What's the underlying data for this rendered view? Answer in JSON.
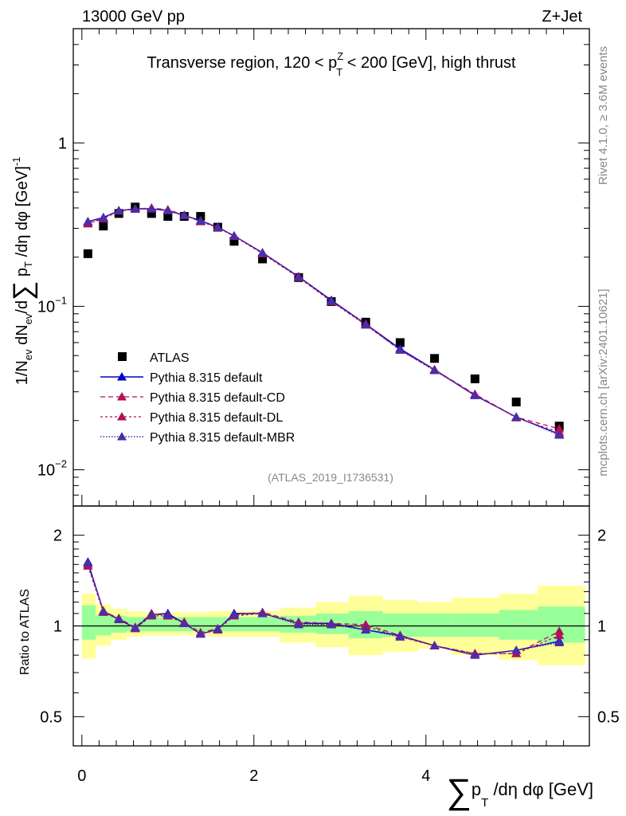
{
  "header": {
    "left": "13000 GeV pp",
    "right": "Z+Jet"
  },
  "side_labels": {
    "rivet": "Rivet 4.1.0, ≥ 3.6M events",
    "mcplots": "mcplots.cern.ch [arXiv:2401.10621]"
  },
  "colors": {
    "atlas": "#000000",
    "default": "#0000cc",
    "cd": "#b0105a",
    "dl": "#b0105a",
    "mbr": "#4b2ea8",
    "band_inner": "#99ff99",
    "band_outer": "#ffff99"
  },
  "chart_data": [
    {
      "type": "scatter",
      "title": "Transverse region, 120 < p_T^Z < 200 [GeV], high thrust",
      "title_parts": {
        "pre": "Transverse region, 120 < p",
        "sup": "Z",
        "sub": "T",
        "post": " < 200 [GeV], high thrust"
      },
      "ylabel": "1/N_ev dN_ev/d∑ p_T /dη dφ [GeV]^-1",
      "yscale": "log",
      "ylim": [
        0.006,
        5.0
      ],
      "xlim": [
        -0.1,
        5.9
      ],
      "y_tick_labels": {
        "1": "1",
        "0.1": "10",
        "0.01": "10"
      },
      "y_tick_exponents": {
        "0.1": "−1",
        "0.01": "−2"
      },
      "watermark": "(ATLAS_2019_I1736531)",
      "legend": [
        "ATLAS",
        "Pythia 8.315 default",
        "Pythia 8.315 default-CD",
        "Pythia 8.315 default-DL",
        "Pythia 8.315 default-MBR"
      ],
      "x": [
        0.07,
        0.25,
        0.43,
        0.62,
        0.81,
        1.0,
        1.19,
        1.38,
        1.58,
        1.77,
        2.1,
        2.52,
        2.9,
        3.3,
        3.7,
        4.1,
        4.57,
        5.05,
        5.55
      ],
      "series": [
        {
          "name": "ATLAS",
          "values": [
            0.21,
            0.31,
            0.37,
            0.405,
            0.37,
            0.355,
            0.355,
            0.355,
            0.305,
            0.25,
            0.195,
            0.15,
            0.107,
            0.08,
            0.06,
            0.048,
            0.036,
            0.026,
            0.0185
          ]
        },
        {
          "name": "Pythia 8.315 default",
          "values": [
            0.33,
            0.35,
            0.385,
            0.395,
            0.395,
            0.385,
            0.36,
            0.335,
            0.305,
            0.27,
            0.213,
            0.152,
            0.109,
            0.078,
            0.055,
            0.041,
            0.0285,
            0.021,
            0.0165
          ]
        },
        {
          "name": "Pythia 8.315 default-CD",
          "values": [
            0.325,
            0.345,
            0.385,
            0.395,
            0.4,
            0.39,
            0.362,
            0.332,
            0.305,
            0.27,
            0.212,
            0.152,
            0.108,
            0.078,
            0.054,
            0.041,
            0.029,
            0.021,
            0.0178
          ]
        },
        {
          "name": "Pythia 8.315 default-DL",
          "values": [
            0.32,
            0.343,
            0.383,
            0.393,
            0.398,
            0.388,
            0.36,
            0.33,
            0.303,
            0.268,
            0.21,
            0.15,
            0.107,
            0.077,
            0.054,
            0.0405,
            0.0288,
            0.0208,
            0.017
          ]
        },
        {
          "name": "Pythia 8.315 default-MBR",
          "values": [
            0.33,
            0.348,
            0.385,
            0.395,
            0.395,
            0.385,
            0.36,
            0.333,
            0.305,
            0.27,
            0.212,
            0.151,
            0.108,
            0.077,
            0.054,
            0.0405,
            0.0285,
            0.021,
            0.0163
          ]
        }
      ]
    },
    {
      "type": "line",
      "ylabel": "Ratio to ATLAS",
      "xlabel": "∑ p_T /dη dφ [GeV]",
      "xlabel_parts": {
        "sum": "∑",
        "p": "p",
        "sub": "T",
        "rest": "/dη dφ [GeV]"
      },
      "xlim": [
        -0.1,
        5.9
      ],
      "ylim": [
        0.4,
        2.5
      ],
      "yscale": "log",
      "x_ticks": [
        0,
        2,
        4
      ],
      "x_tick_labels": [
        "0",
        "2",
        "4"
      ],
      "y_ticks": [
        0.5,
        1,
        2
      ],
      "y_tick_labels": [
        "0.5",
        "1",
        "2"
      ],
      "bins": [
        0.0,
        0.16,
        0.34,
        0.52,
        0.71,
        0.9,
        1.09,
        1.28,
        1.48,
        1.67,
        1.9,
        2.3,
        2.72,
        3.1,
        3.5,
        3.9,
        4.3,
        4.85,
        5.3,
        5.85
      ],
      "band_inner": [
        [
          0.9,
          1.17
        ],
        [
          0.93,
          1.09
        ],
        [
          0.95,
          1.08
        ],
        [
          0.96,
          1.07
        ],
        [
          0.96,
          1.07
        ],
        [
          0.96,
          1.07
        ],
        [
          0.96,
          1.07
        ],
        [
          0.96,
          1.07
        ],
        [
          0.96,
          1.07
        ],
        [
          0.96,
          1.07
        ],
        [
          0.96,
          1.07
        ],
        [
          0.95,
          1.08
        ],
        [
          0.94,
          1.1
        ],
        [
          0.91,
          1.12
        ],
        [
          0.92,
          1.1
        ],
        [
          0.92,
          1.1
        ],
        [
          0.92,
          1.1
        ],
        [
          0.9,
          1.13
        ],
        [
          0.88,
          1.16
        ]
      ],
      "band_outer": [
        [
          0.78,
          1.28
        ],
        [
          0.86,
          1.18
        ],
        [
          0.9,
          1.14
        ],
        [
          0.92,
          1.12
        ],
        [
          0.93,
          1.11
        ],
        [
          0.93,
          1.11
        ],
        [
          0.93,
          1.11
        ],
        [
          0.93,
          1.11
        ],
        [
          0.92,
          1.12
        ],
        [
          0.92,
          1.12
        ],
        [
          0.92,
          1.12
        ],
        [
          0.88,
          1.15
        ],
        [
          0.85,
          1.2
        ],
        [
          0.8,
          1.26
        ],
        [
          0.82,
          1.22
        ],
        [
          0.84,
          1.2
        ],
        [
          0.8,
          1.24
        ],
        [
          0.77,
          1.28
        ],
        [
          0.74,
          1.36
        ]
      ],
      "x": [
        0.07,
        0.25,
        0.43,
        0.62,
        0.81,
        1.0,
        1.19,
        1.38,
        1.58,
        1.77,
        2.1,
        2.52,
        2.9,
        3.3,
        3.7,
        4.1,
        4.57,
        5.05,
        5.55
      ],
      "series": [
        {
          "name": "Pythia 8.315 default",
          "values": [
            1.63,
            1.12,
            1.05,
            0.985,
            1.09,
            1.1,
            1.02,
            0.94,
            0.975,
            1.1,
            1.1,
            1.02,
            1.02,
            0.97,
            0.93,
            0.86,
            0.8,
            0.83,
            0.89
          ]
        },
        {
          "name": "Pythia 8.315 default-CD",
          "values": [
            1.6,
            1.12,
            1.06,
            0.99,
            1.1,
            1.08,
            1.03,
            0.95,
            0.98,
            1.09,
            1.11,
            1.03,
            1.02,
            1.01,
            0.93,
            0.86,
            0.81,
            0.81,
            0.96
          ]
        },
        {
          "name": "Pythia 8.315 default-DL",
          "values": [
            1.58,
            1.11,
            1.05,
            0.98,
            1.08,
            1.08,
            1.02,
            0.94,
            0.97,
            1.08,
            1.1,
            1.02,
            1.01,
            1.0,
            0.92,
            0.86,
            0.81,
            0.81,
            0.93
          ]
        },
        {
          "name": "Pythia 8.315 default-MBR",
          "values": [
            1.62,
            1.12,
            1.05,
            0.985,
            1.09,
            1.09,
            1.02,
            0.94,
            0.975,
            1.09,
            1.1,
            1.01,
            1.01,
            0.97,
            0.92,
            0.86,
            0.8,
            0.83,
            0.88
          ]
        }
      ]
    }
  ]
}
